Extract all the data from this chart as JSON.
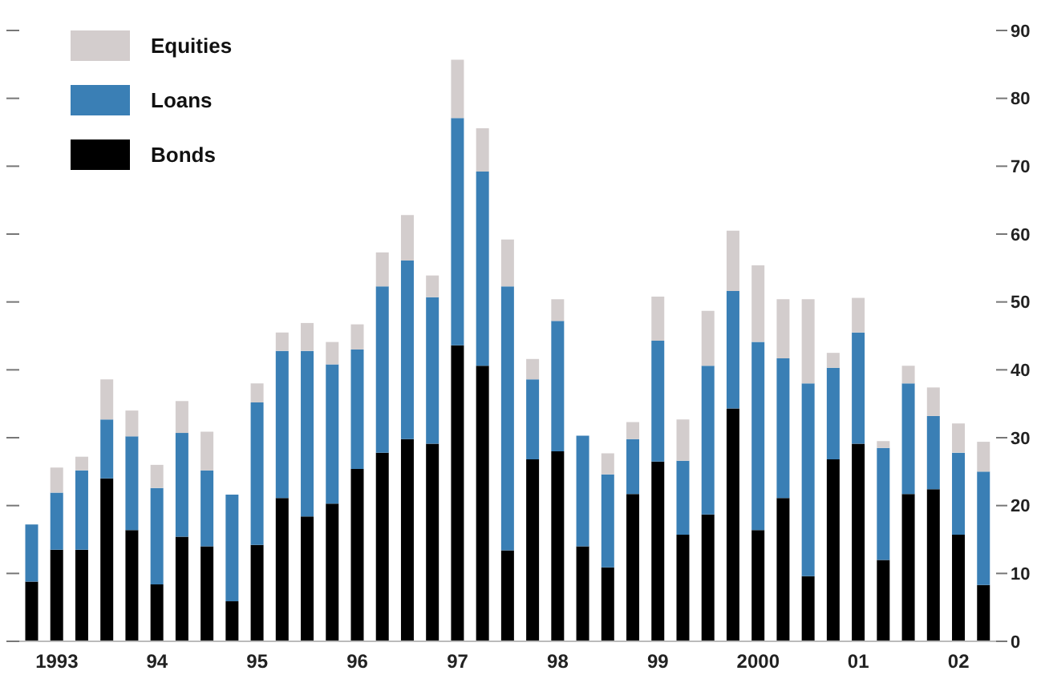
{
  "chart_data": {
    "type": "bar",
    "stacked": true,
    "categories": [
      null,
      "1993",
      null,
      null,
      null,
      "94",
      null,
      null,
      null,
      "95",
      null,
      null,
      null,
      "96",
      null,
      null,
      null,
      "97",
      null,
      null,
      null,
      "98",
      null,
      null,
      null,
      "99",
      null,
      null,
      null,
      "2000",
      null,
      null,
      null,
      "01",
      null,
      null,
      null,
      "02",
      null
    ],
    "series": [
      {
        "name": "Bonds",
        "color": "#000000",
        "values": [
          8.8,
          13.5,
          13.5,
          24.0,
          16.4,
          8.4,
          15.4,
          14.0,
          5.9,
          14.2,
          21.1,
          18.4,
          20.3,
          25.4,
          27.8,
          29.8,
          29.1,
          43.6,
          40.6,
          13.4,
          26.8,
          28.0,
          14.0,
          10.9,
          21.7,
          26.5,
          15.7,
          18.7,
          34.3,
          16.4,
          21.1,
          9.6,
          26.8,
          29.1,
          12.0,
          21.7,
          22.4,
          15.7,
          8.3
        ]
      },
      {
        "name": "Loans",
        "color": "#3a7fb5",
        "values": [
          8.4,
          8.4,
          11.7,
          8.7,
          13.8,
          14.2,
          15.3,
          11.2,
          15.7,
          21.0,
          21.7,
          24.4,
          20.5,
          17.6,
          24.5,
          26.3,
          21.6,
          33.5,
          28.6,
          38.9,
          11.8,
          19.2,
          16.3,
          13.7,
          8.1,
          17.8,
          10.9,
          21.9,
          17.3,
          27.7,
          20.6,
          28.4,
          13.5,
          16.4,
          16.5,
          16.3,
          10.8,
          12.1,
          16.7
        ]
      },
      {
        "name": "Equities",
        "color": "#d3cdcd",
        "values": [
          0,
          3.7,
          2.0,
          5.9,
          3.8,
          3.4,
          4.7,
          5.7,
          0,
          2.8,
          2.7,
          4.1,
          3.3,
          3.7,
          5.0,
          6.7,
          3.2,
          8.6,
          6.4,
          6.9,
          3.0,
          3.2,
          0,
          3.1,
          2.5,
          6.5,
          6.1,
          8.1,
          8.9,
          11.3,
          8.7,
          12.4,
          2.2,
          5.1,
          1.0,
          2.6,
          4.2,
          4.3,
          4.4
        ]
      }
    ],
    "ylim": [
      0,
      90
    ],
    "yticks": [
      0,
      10,
      20,
      30,
      40,
      50,
      60,
      70,
      80,
      90
    ],
    "legend": "top left"
  }
}
